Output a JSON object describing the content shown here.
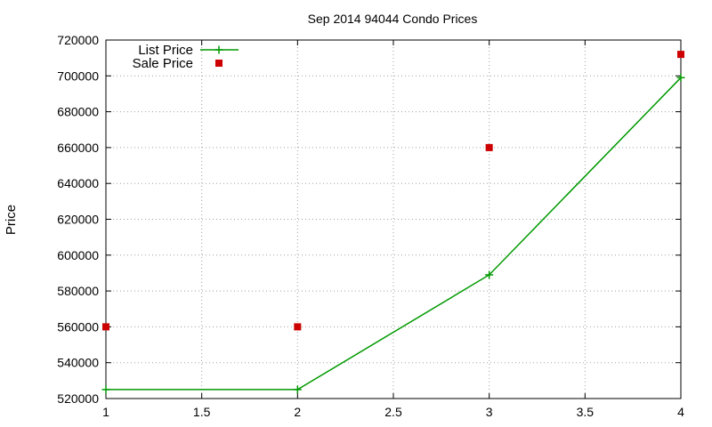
{
  "chart_data": {
    "type": "line",
    "title": "Sep 2014 94044 Condo Prices",
    "xlabel": "",
    "ylabel": "Price",
    "xlim": [
      1,
      4
    ],
    "ylim": [
      520000,
      720000
    ],
    "x_ticks": [
      "1",
      "1.5",
      "2",
      "2.5",
      "3",
      "3.5",
      "4"
    ],
    "x_tick_values": [
      1,
      1.5,
      2,
      2.5,
      3,
      3.5,
      4
    ],
    "y_ticks": [
      "520000",
      "540000",
      "560000",
      "580000",
      "600000",
      "620000",
      "640000",
      "660000",
      "680000",
      "700000",
      "720000"
    ],
    "y_tick_values": [
      520000,
      540000,
      560000,
      580000,
      600000,
      620000,
      640000,
      660000,
      680000,
      700000,
      720000
    ],
    "grid": true,
    "legend_position": "top-left",
    "series": [
      {
        "name": "List Price",
        "style": "line-plus",
        "color": "#009900",
        "x": [
          1,
          2,
          3,
          4
        ],
        "y": [
          525000,
          525000,
          589000,
          699000
        ]
      },
      {
        "name": "Sale Price",
        "style": "square",
        "color": "#cc0000",
        "x": [
          1,
          2,
          3,
          4
        ],
        "y": [
          560000,
          560000,
          660000,
          712000
        ]
      }
    ]
  }
}
